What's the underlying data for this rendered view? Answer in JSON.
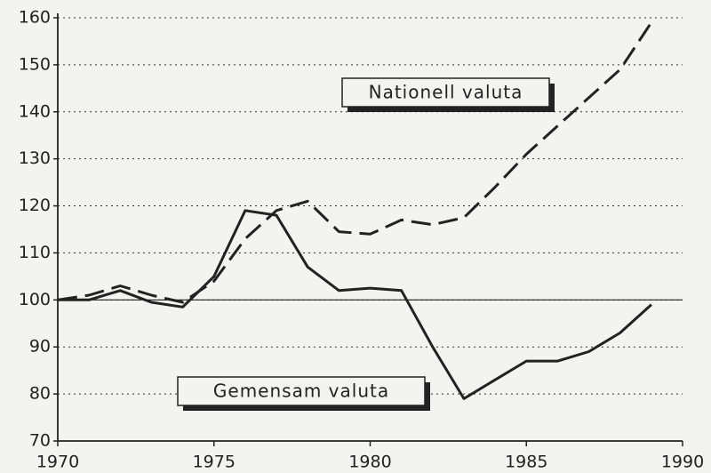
{
  "chart_data": {
    "type": "line",
    "x": [
      1970,
      1971,
      1972,
      1973,
      1974,
      1975,
      1976,
      1977,
      1978,
      1979,
      1980,
      1981,
      1982,
      1983,
      1984,
      1985,
      1986,
      1987,
      1988,
      1989
    ],
    "series": [
      {
        "name": "Nationell valuta",
        "color": "#222222",
        "dashed": true,
        "values": [
          100,
          101,
          103,
          101,
          99.5,
          104,
          113,
          119,
          121,
          114.5,
          114,
          117,
          116,
          117.5,
          124,
          131,
          137,
          143,
          149,
          159
        ]
      },
      {
        "name": "Gemensam valuta",
        "color": "#222222",
        "dashed": false,
        "values": [
          100,
          100,
          102,
          99.5,
          98.5,
          105,
          119,
          118,
          107,
          102,
          102.5,
          102,
          90,
          79,
          83,
          87,
          87,
          89,
          93,
          99
        ]
      }
    ],
    "xlim": [
      1970,
      1990
    ],
    "xticks": [
      1970,
      1975,
      1980,
      1985,
      1990
    ],
    "ylim": [
      70,
      160
    ],
    "yticks": [
      70,
      80,
      90,
      100,
      110,
      120,
      130,
      140,
      150,
      160
    ],
    "grid": true,
    "reference_line": 100
  }
}
